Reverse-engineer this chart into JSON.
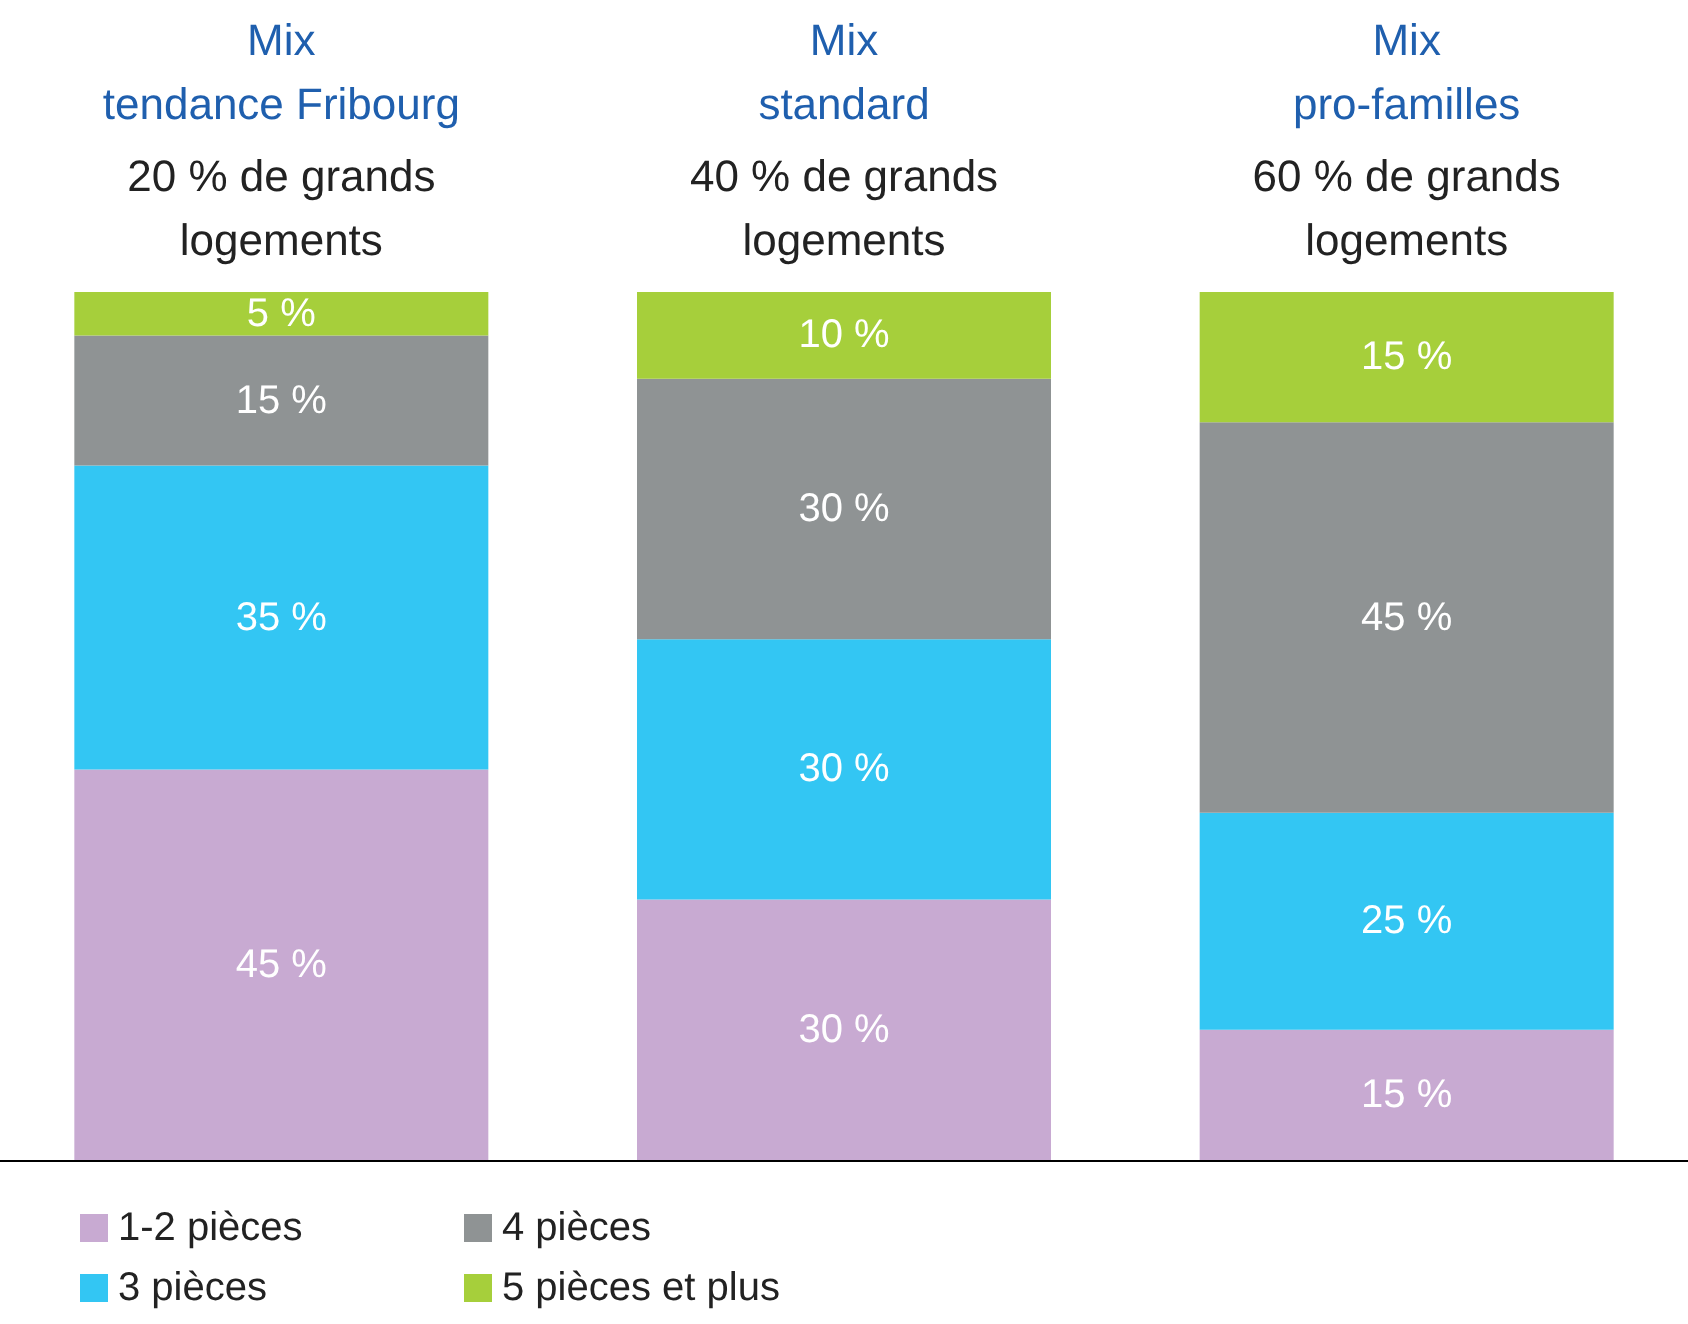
{
  "chart_data": {
    "type": "bar",
    "stacked": true,
    "categories": [
      "Mix\ntendance Fribourg",
      "Mix\nstandard",
      "Mix\npro-familles"
    ],
    "annotations": [
      "20 % de grands\nlogements",
      "40 % de grands\nlogements",
      "60 % de grands\nlogements"
    ],
    "series": [
      {
        "name": "1-2 pièces",
        "color": "#c8aad2",
        "values": [
          45,
          30,
          15
        ],
        "value_labels": [
          "45 %",
          "30 %",
          "15 %"
        ]
      },
      {
        "name": "3 pièces",
        "color": "#33c6f3",
        "values": [
          35,
          30,
          25
        ],
        "value_labels": [
          "35 %",
          "30 %",
          "25 %"
        ]
      },
      {
        "name": "4 pièces",
        "color": "#8f9394",
        "values": [
          15,
          30,
          45
        ],
        "value_labels": [
          "15 %",
          "30 %",
          "45 %"
        ]
      },
      {
        "name": "5 pièces et plus",
        "color": "#a6cf3b",
        "values": [
          5,
          10,
          15
        ],
        "value_labels": [
          "5 %",
          "10 %",
          "15 %"
        ]
      }
    ],
    "legend": "bottom left",
    "grid": false
  }
}
